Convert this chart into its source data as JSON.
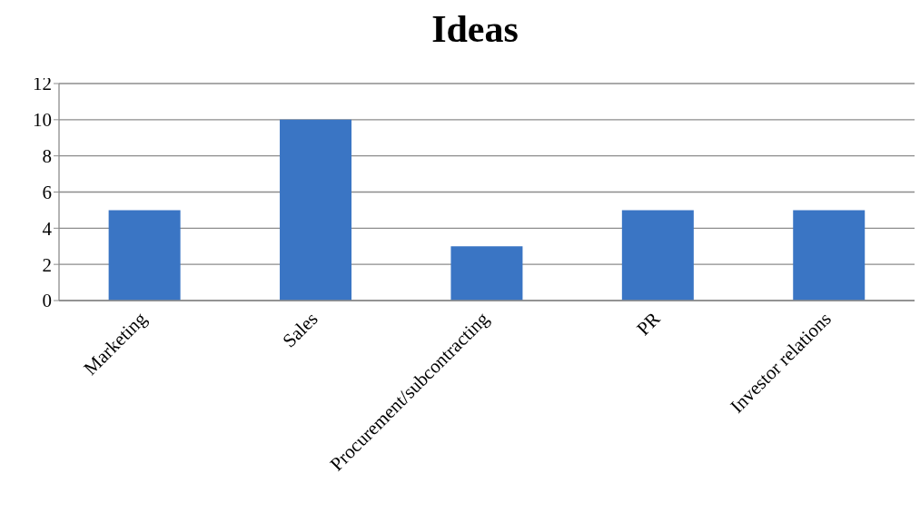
{
  "chart_data": {
    "type": "bar",
    "title": "Ideas",
    "categories": [
      "Marketing",
      "Sales",
      "Procurement/subcontracting",
      "PR",
      "Investor relations"
    ],
    "values": [
      5,
      10,
      3,
      5,
      5
    ],
    "color": "#3a75c4",
    "ylim": [
      0,
      12
    ],
    "yticks": [
      0,
      2,
      4,
      6,
      8,
      10,
      12
    ],
    "grid": "y",
    "legend": false
  }
}
